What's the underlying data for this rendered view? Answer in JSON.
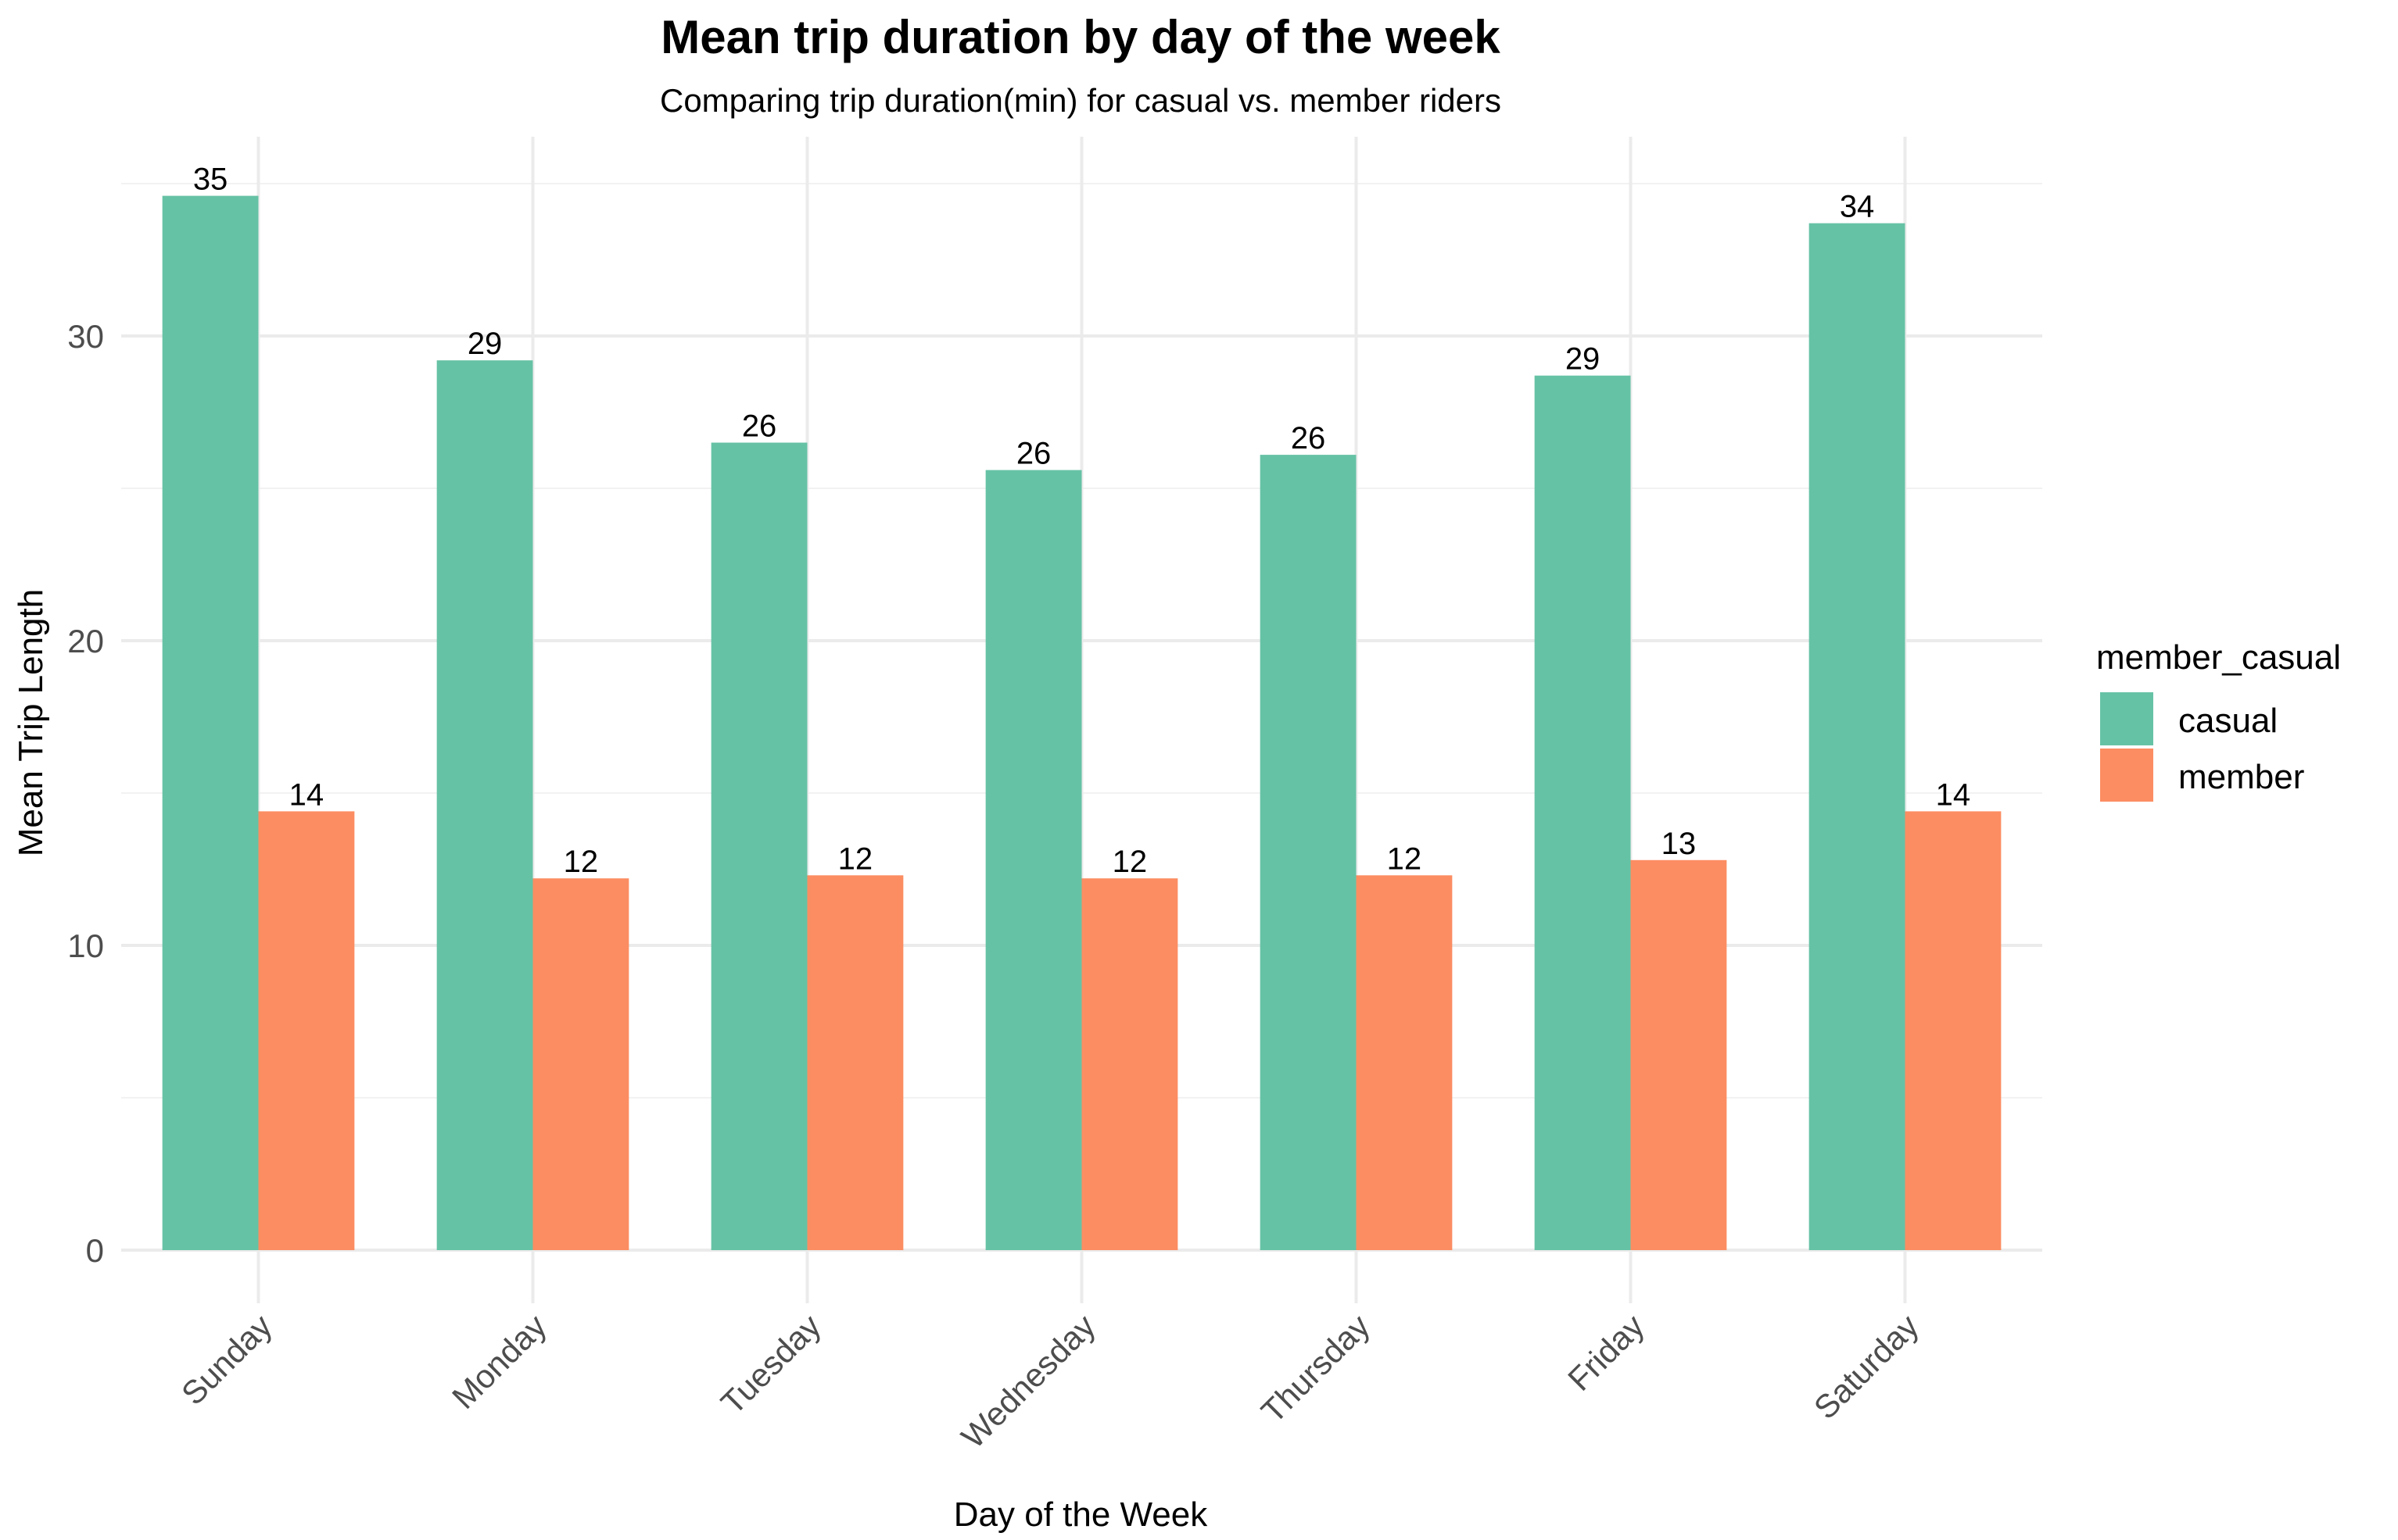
{
  "chart_data": {
    "type": "bar",
    "title": "Mean trip duration by day of the week",
    "subtitle": "Comparing trip duration(min) for casual vs. member riders",
    "xlabel": "Day of the Week",
    "ylabel": "Mean Trip Length",
    "categories": [
      "Sunday",
      "Monday",
      "Tuesday",
      "Wednesday",
      "Thursday",
      "Friday",
      "Saturday"
    ],
    "series": [
      {
        "name": "casual",
        "color": "#66c2a5",
        "values": [
          34.6,
          29.2,
          26.5,
          25.6,
          26.1,
          28.7,
          33.7
        ],
        "labels": [
          "35",
          "29",
          "26",
          "26",
          "26",
          "29",
          "34"
        ]
      },
      {
        "name": "member",
        "color": "#fc8d62",
        "values": [
          14.4,
          12.2,
          12.3,
          12.2,
          12.3,
          12.8,
          14.4
        ],
        "labels": [
          "14",
          "12",
          "12",
          "12",
          "12",
          "13",
          "14"
        ]
      }
    ],
    "ylim": [
      0,
      36
    ],
    "yticks": [
      0,
      10,
      20,
      30
    ],
    "grid": true,
    "legend": {
      "title": "member_casual",
      "position": "right"
    }
  }
}
